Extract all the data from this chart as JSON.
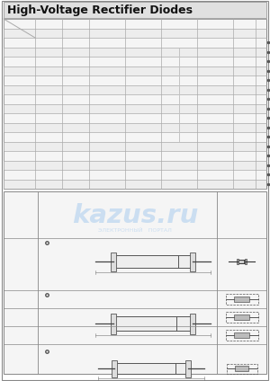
{
  "title": "High-Voltage Rectifier Diodes",
  "title_bg": "#e0e0e0",
  "title_fontsize": 9,
  "bg_color": "#ffffff",
  "watermark_text": "kazus.ru",
  "watermark_sub": "ЭЛЕКТРОННЫЙ   ПОРТАЛ"
}
